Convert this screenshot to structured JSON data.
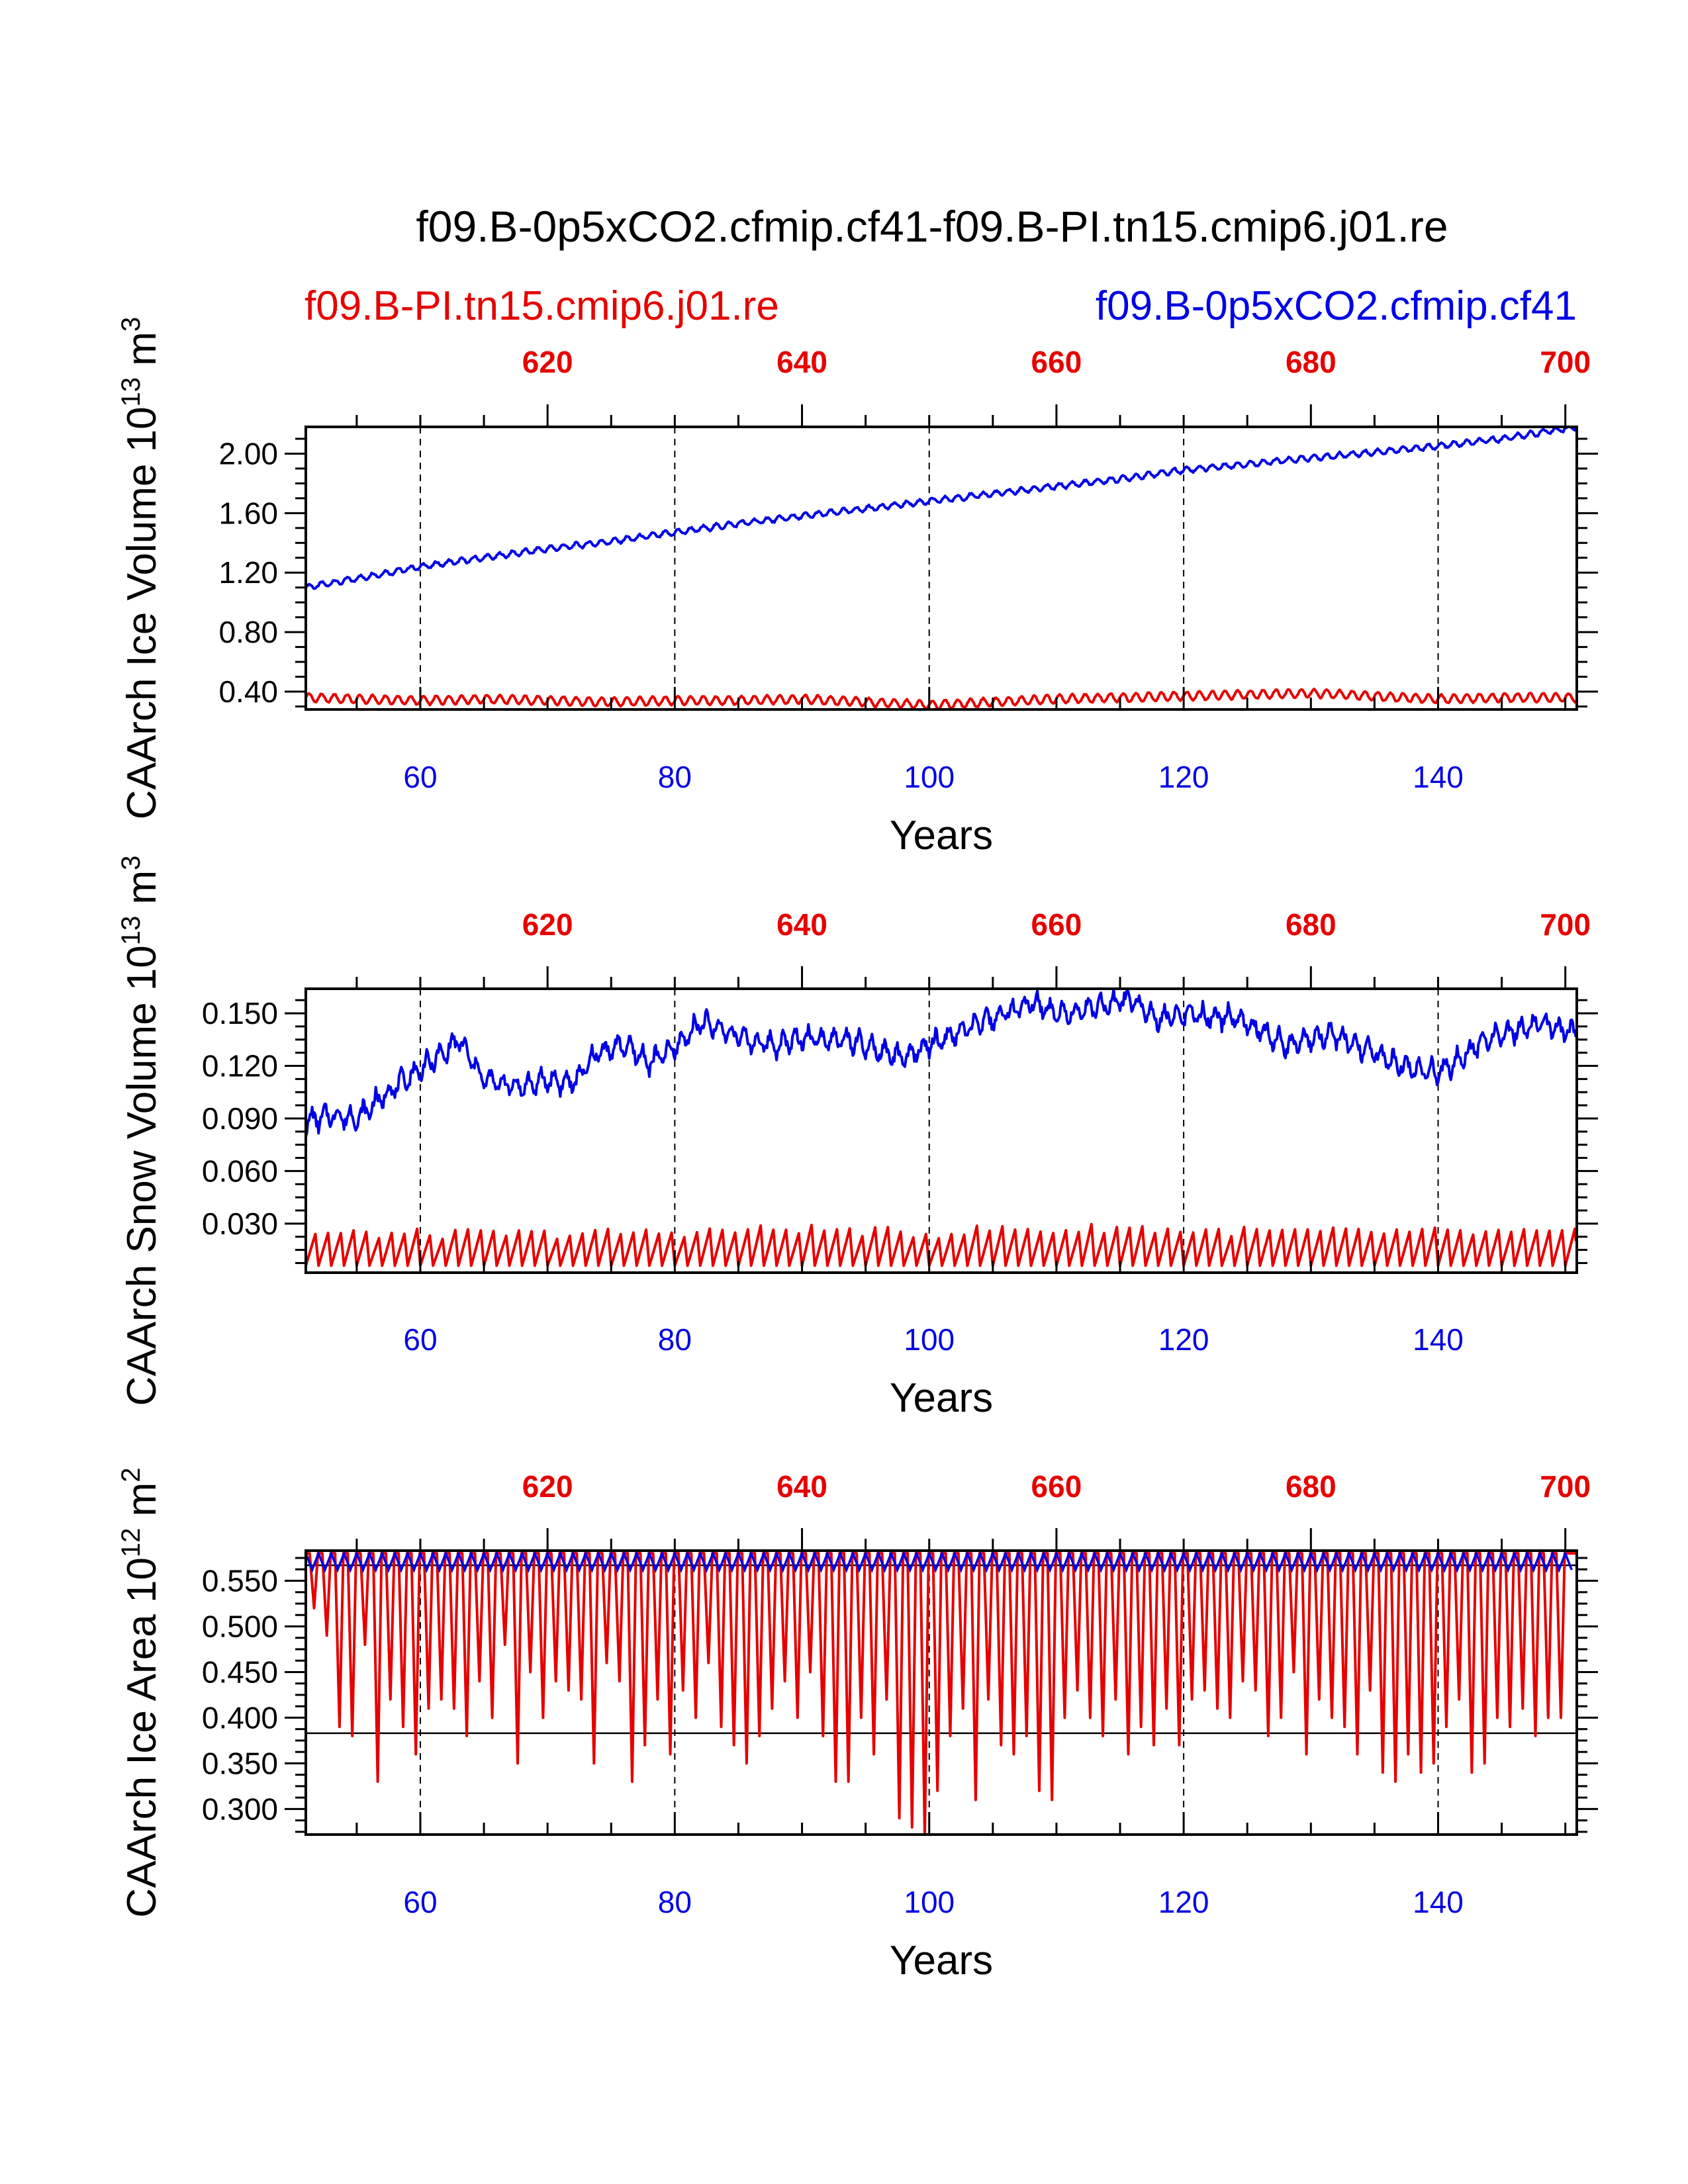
{
  "title": "f09.B-0p5xCO2.cfmip.cf41-f09.B-PI.tn15.cmip6.j01.re",
  "legend": {
    "left": "f09.B-PI.tn15.cmip6.j01.re",
    "right": "f09.B-0p5xCO2.cfmip.cf41"
  },
  "colors": {
    "control": "#e60000",
    "experiment": "#0000e6",
    "axis": "#000000"
  },
  "chart_data": [
    {
      "type": "line",
      "id": "ice-volume",
      "ylabel_main": "CAArch Ice Volume 10",
      "ylabel_exp": "13",
      "ylabel_unit": " m",
      "ylabel_unit_exp": "3",
      "xlabel": "Years",
      "xlim": [
        51,
        150.9
      ],
      "ylim": [
        0.28,
        2.18
      ],
      "yticks": [
        "0.40",
        "0.80",
        "1.20",
        "1.60",
        "2.00"
      ],
      "ytick_values": [
        0.4,
        0.8,
        1.2,
        1.6,
        2.0
      ],
      "xticks": [
        "60",
        "80",
        "100",
        "120",
        "140"
      ],
      "xtick_values": [
        60,
        80,
        100,
        120,
        140
      ],
      "top_xticks": [
        "620",
        "640",
        "660",
        "680",
        "700"
      ],
      "top_xtick_values": [
        620,
        640,
        660,
        680,
        700
      ],
      "top_offset": 550,
      "gridlines_x": [
        60,
        80,
        100,
        120,
        140
      ],
      "series": [
        {
          "name": "f09.B-0p5xCO2.cfmip.cf41",
          "color": "#0000e6",
          "x": [
            51,
            55,
            60,
            65,
            70,
            75,
            80,
            85,
            90,
            95,
            100,
            105,
            110,
            115,
            120,
            125,
            130,
            135,
            140,
            145,
            150.9
          ],
          "y": [
            1.1,
            1.16,
            1.24,
            1.3,
            1.36,
            1.41,
            1.47,
            1.53,
            1.58,
            1.63,
            1.68,
            1.73,
            1.78,
            1.83,
            1.89,
            1.93,
            1.97,
            2.01,
            2.05,
            2.1,
            2.18
          ]
        },
        {
          "name": "f09.B-PI.tn15.cmip6.j01.re",
          "color": "#e60000",
          "x": [
            51,
            55,
            60,
            65,
            70,
            75,
            80,
            85,
            90,
            95,
            100,
            105,
            110,
            115,
            120,
            125,
            130,
            135,
            140,
            145,
            150.9
          ],
          "y": [
            0.36,
            0.35,
            0.34,
            0.35,
            0.34,
            0.33,
            0.34,
            0.34,
            0.35,
            0.33,
            0.31,
            0.33,
            0.35,
            0.36,
            0.37,
            0.38,
            0.39,
            0.37,
            0.35,
            0.36,
            0.36
          ]
        }
      ]
    },
    {
      "type": "line",
      "id": "snow-volume",
      "ylabel_main": "CAArch Snow Volume 10",
      "ylabel_exp": "13",
      "ylabel_unit": " m",
      "ylabel_unit_exp": "3",
      "xlabel": "Years",
      "xlim": [
        51,
        150.9
      ],
      "ylim": [
        0.002,
        0.164
      ],
      "yticks": [
        "0.030",
        "0.060",
        "0.090",
        "0.120",
        "0.150"
      ],
      "ytick_values": [
        0.03,
        0.06,
        0.09,
        0.12,
        0.15
      ],
      "xticks": [
        "60",
        "80",
        "100",
        "120",
        "140"
      ],
      "xtick_values": [
        60,
        80,
        100,
        120,
        140
      ],
      "top_xticks": [
        "620",
        "640",
        "660",
        "680",
        "700"
      ],
      "top_xtick_values": [
        620,
        640,
        660,
        680,
        700
      ],
      "top_offset": 550,
      "gridlines_x": [
        60,
        80,
        100,
        120,
        140
      ],
      "series": [
        {
          "name": "f09.B-0p5xCO2.cfmip.cf41",
          "color": "#0000e6",
          "x": [
            51,
            53,
            55,
            58,
            60,
            62,
            63,
            65,
            68,
            70,
            72,
            74,
            76,
            78,
            80,
            82,
            84,
            86,
            88,
            90,
            92,
            94,
            96,
            98,
            100,
            102,
            104,
            106,
            108,
            110,
            112,
            114,
            116,
            118,
            120,
            122,
            124,
            126,
            128,
            130,
            132,
            134,
            136,
            138,
            140,
            142,
            144,
            146,
            148,
            150.9
          ],
          "y": [
            0.088,
            0.092,
            0.09,
            0.108,
            0.118,
            0.128,
            0.135,
            0.112,
            0.108,
            0.112,
            0.11,
            0.128,
            0.132,
            0.122,
            0.13,
            0.145,
            0.14,
            0.134,
            0.132,
            0.136,
            0.136,
            0.134,
            0.128,
            0.124,
            0.132,
            0.138,
            0.144,
            0.15,
            0.156,
            0.15,
            0.152,
            0.155,
            0.158,
            0.146,
            0.15,
            0.148,
            0.148,
            0.14,
            0.132,
            0.136,
            0.138,
            0.13,
            0.124,
            0.118,
            0.116,
            0.126,
            0.136,
            0.14,
            0.144,
            0.138
          ]
        },
        {
          "name": "f09.B-PI.tn15.cmip6.j01.re",
          "color": "#e60000",
          "x": [
            51,
            60,
            70,
            80,
            90,
            100,
            105,
            110,
            115,
            120,
            130,
            140,
            150.9
          ],
          "y": [
            0.015,
            0.015,
            0.015,
            0.016,
            0.018,
            0.015,
            0.018,
            0.017,
            0.019,
            0.017,
            0.016,
            0.016,
            0.015
          ]
        }
      ]
    },
    {
      "type": "line",
      "id": "ice-area",
      "ylabel_main": "CAArch Ice Area 10",
      "ylabel_exp": "12",
      "ylabel_unit": " m",
      "ylabel_unit_exp": "2",
      "xlabel": "Years",
      "xlim": [
        51,
        150.9
      ],
      "ylim": [
        0.272,
        0.583
      ],
      "yticks": [
        "0.300",
        "0.350",
        "0.400",
        "0.450",
        "0.500",
        "0.550"
      ],
      "ytick_values": [
        0.3,
        0.35,
        0.4,
        0.45,
        0.5,
        0.55
      ],
      "xticks": [
        "60",
        "80",
        "100",
        "120",
        "140"
      ],
      "xtick_values": [
        60,
        80,
        100,
        120,
        140
      ],
      "top_xticks": [
        "620",
        "640",
        "660",
        "680",
        "700"
      ],
      "top_xtick_values": [
        620,
        640,
        660,
        680,
        700
      ],
      "top_offset": 550,
      "gridlines_x": [
        60,
        80,
        100,
        120,
        140
      ],
      "hlines": [
        0.567,
        0.383
      ],
      "series": [
        {
          "name": "f09.B-0p5xCO2.cfmip.cf41",
          "color": "#0000e6",
          "summer_minimum": 0.562,
          "winter_maximum": 0.58
        },
        {
          "name": "f09.B-PI.tn15.cmip6.j01.re",
          "color": "#e60000",
          "winter_maximum": 0.58,
          "year": [
            52,
            53,
            54,
            55,
            56,
            57,
            58,
            59,
            60,
            61,
            62,
            63,
            64,
            65,
            66,
            67,
            68,
            69,
            70,
            71,
            72,
            73,
            74,
            75,
            76,
            77,
            78,
            79,
            80,
            81,
            82,
            83,
            84,
            85,
            86,
            87,
            88,
            89,
            90,
            91,
            92,
            93,
            94,
            95,
            96,
            97,
            98,
            99,
            100,
            101,
            102,
            103,
            104,
            105,
            106,
            107,
            108,
            109,
            110,
            111,
            112,
            113,
            114,
            115,
            116,
            117,
            118,
            119,
            120,
            121,
            122,
            123,
            124,
            125,
            126,
            127,
            128,
            129,
            130,
            131,
            132,
            133,
            134,
            135,
            136,
            137,
            138,
            139,
            140,
            141,
            142,
            143,
            144,
            145,
            146,
            147,
            148,
            149,
            150
          ],
          "summer_minimum": [
            0.52,
            0.49,
            0.39,
            0.38,
            0.48,
            0.33,
            0.42,
            0.39,
            0.36,
            0.41,
            0.42,
            0.41,
            0.38,
            0.44,
            0.4,
            0.48,
            0.35,
            0.45,
            0.4,
            0.44,
            0.43,
            0.42,
            0.35,
            0.46,
            0.44,
            0.33,
            0.37,
            0.42,
            0.36,
            0.43,
            0.4,
            0.46,
            0.39,
            0.37,
            0.35,
            0.38,
            0.41,
            0.44,
            0.4,
            0.45,
            0.38,
            0.33,
            0.33,
            0.4,
            0.36,
            0.42,
            0.29,
            0.28,
            0.27,
            0.32,
            0.38,
            0.41,
            0.31,
            0.42,
            0.37,
            0.36,
            0.38,
            0.32,
            0.31,
            0.4,
            0.43,
            0.4,
            0.38,
            0.42,
            0.36,
            0.39,
            0.37,
            0.41,
            0.37,
            0.42,
            0.43,
            0.41,
            0.4,
            0.44,
            0.43,
            0.38,
            0.4,
            0.45,
            0.36,
            0.42,
            0.4,
            0.39,
            0.36,
            0.43,
            0.34,
            0.33,
            0.36,
            0.34,
            0.35,
            0.39,
            0.42,
            0.34,
            0.35,
            0.4,
            0.39,
            0.41,
            0.38,
            0.4,
            0.4
          ]
        }
      ]
    }
  ]
}
